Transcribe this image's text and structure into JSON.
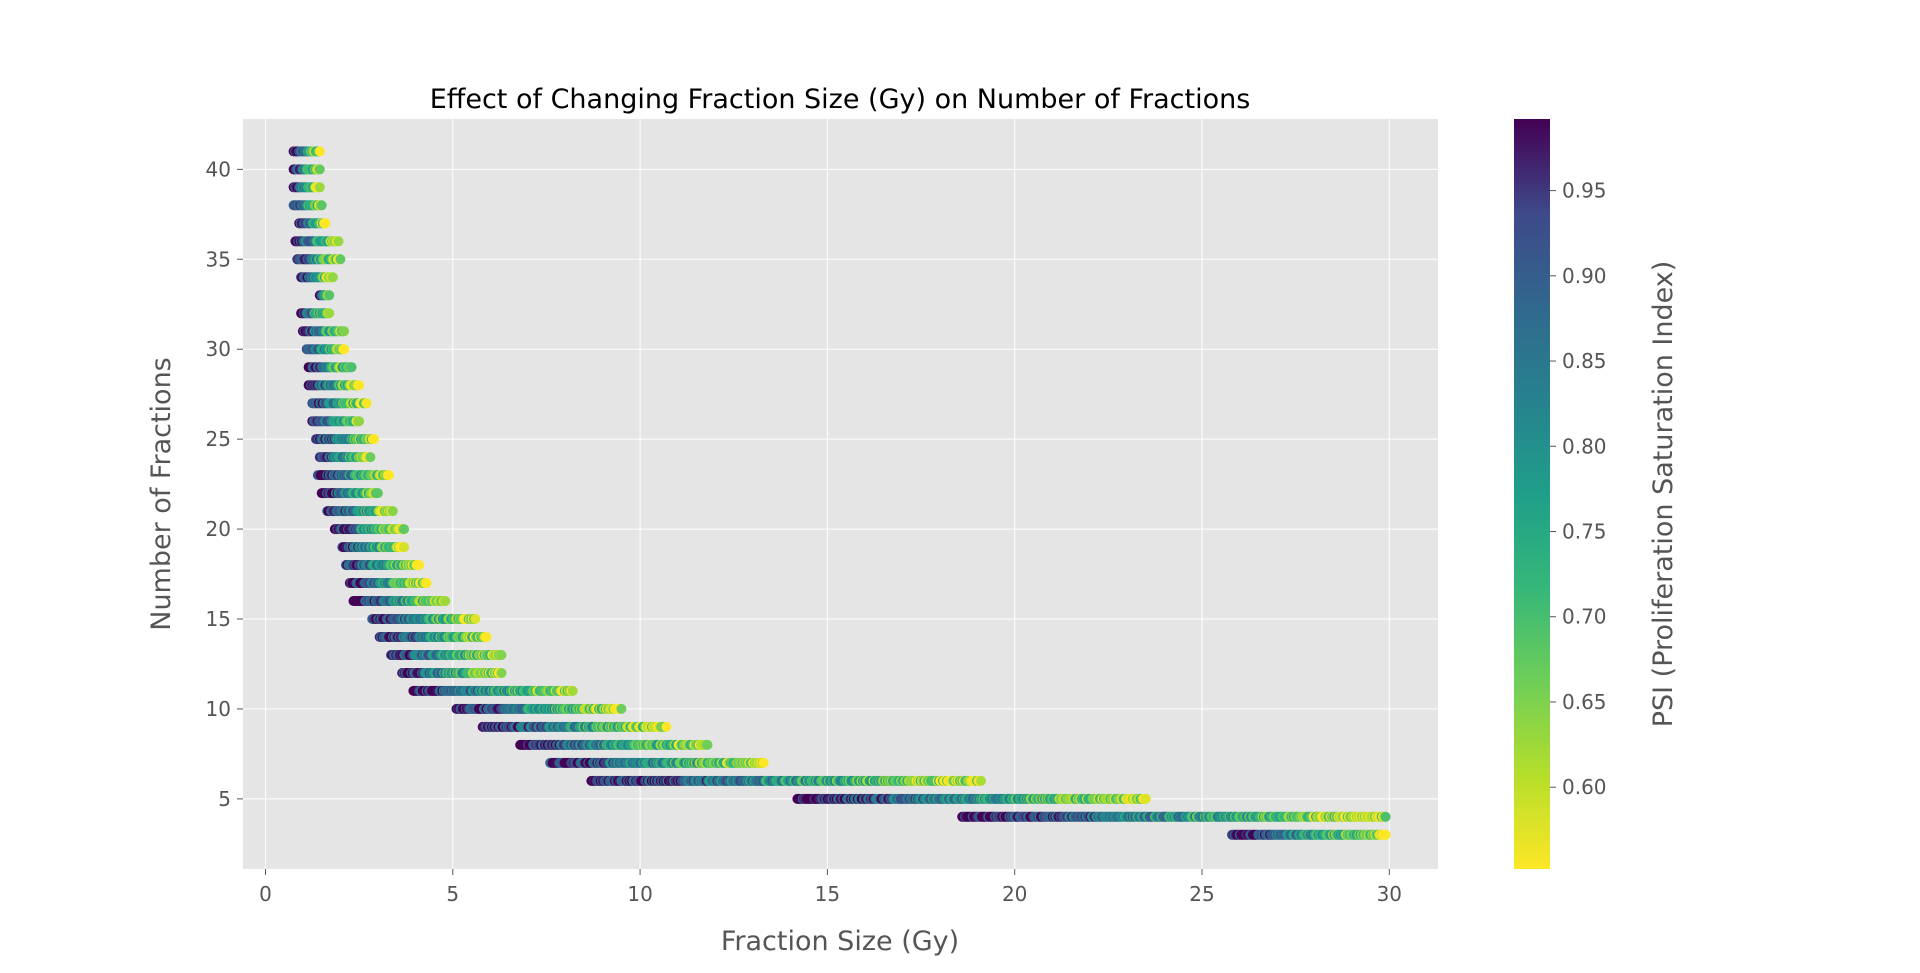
{
  "chart_data": {
    "type": "scatter",
    "title": "Effect of Changing Fraction Size (Gy) on Number of Fractions",
    "xlabel": "Fraction Size (Gy)",
    "ylabel": "Number of Fractions",
    "xlim": [
      -0.6,
      31.3
    ],
    "ylim": [
      1.1,
      42.8
    ],
    "xticks": [
      0,
      5,
      10,
      15,
      20,
      25,
      30
    ],
    "yticks": [
      5,
      10,
      15,
      20,
      25,
      30,
      35,
      40
    ],
    "grid": true,
    "colorbar": {
      "label": "PSI (Proliferation Saturation Index)",
      "colormap": "viridis",
      "range": [
        0.552,
        0.992
      ],
      "ticks": [
        0.6,
        0.65,
        0.7,
        0.75,
        0.8,
        0.85,
        0.9,
        0.95
      ]
    },
    "series": [
      {
        "marker_color_by": "PSI",
        "rows": [
          {
            "y": 41,
            "x": [
              0.75,
              1.45
            ]
          },
          {
            "y": 40,
            "x": [
              0.75,
              1.45
            ]
          },
          {
            "y": 39,
            "x": [
              0.75,
              1.45
            ]
          },
          {
            "y": 38,
            "x": [
              0.75,
              1.5
            ]
          },
          {
            "y": 37,
            "x": [
              0.9,
              1.6
            ]
          },
          {
            "y": 36,
            "x": [
              0.8,
              1.95
            ]
          },
          {
            "y": 35,
            "x": [
              0.85,
              2.0
            ]
          },
          {
            "y": 34,
            "x": [
              0.95,
              1.8
            ]
          },
          {
            "y": 33,
            "x": [
              1.45,
              1.7
            ]
          },
          {
            "y": 32,
            "x": [
              0.95,
              1.7
            ]
          },
          {
            "y": 31,
            "x": [
              1.0,
              2.1
            ]
          },
          {
            "y": 30,
            "x": [
              1.1,
              2.1
            ]
          },
          {
            "y": 29,
            "x": [
              1.15,
              2.3
            ]
          },
          {
            "y": 28,
            "x": [
              1.15,
              2.5
            ]
          },
          {
            "y": 27,
            "x": [
              1.25,
              2.7
            ]
          },
          {
            "y": 26,
            "x": [
              1.25,
              2.5
            ]
          },
          {
            "y": 25,
            "x": [
              1.35,
              2.9
            ]
          },
          {
            "y": 24,
            "x": [
              1.45,
              2.8
            ]
          },
          {
            "y": 23,
            "x": [
              1.4,
              3.3
            ]
          },
          {
            "y": 22,
            "x": [
              1.5,
              3.0
            ]
          },
          {
            "y": 21,
            "x": [
              1.65,
              3.4
            ]
          },
          {
            "y": 20,
            "x": [
              1.85,
              3.7
            ]
          },
          {
            "y": 19,
            "x": [
              2.05,
              3.7
            ]
          },
          {
            "y": 18,
            "x": [
              2.15,
              4.1
            ]
          },
          {
            "y": 17,
            "x": [
              2.25,
              4.3
            ]
          },
          {
            "y": 16,
            "x": [
              2.35,
              4.8
            ]
          },
          {
            "y": 15,
            "x": [
              2.85,
              5.6
            ]
          },
          {
            "y": 14,
            "x": [
              3.05,
              5.9
            ]
          },
          {
            "y": 13,
            "x": [
              3.35,
              6.3
            ]
          },
          {
            "y": 12,
            "x": [
              3.65,
              6.3
            ]
          },
          {
            "y": 11,
            "x": [
              3.95,
              8.2
            ]
          },
          {
            "y": 10,
            "x": [
              5.1,
              9.5
            ]
          },
          {
            "y": 9,
            "x": [
              5.8,
              10.7
            ]
          },
          {
            "y": 8,
            "x": [
              6.8,
              11.8
            ]
          },
          {
            "y": 7,
            "x": [
              7.6,
              13.3
            ]
          },
          {
            "y": 6,
            "x": [
              8.7,
              19.1
            ]
          },
          {
            "y": 5,
            "x": [
              14.2,
              23.5
            ]
          },
          {
            "y": 4,
            "x": [
              18.6,
              29.9
            ]
          },
          {
            "y": 3,
            "x": [
              25.8,
              29.9
            ]
          }
        ]
      }
    ]
  }
}
